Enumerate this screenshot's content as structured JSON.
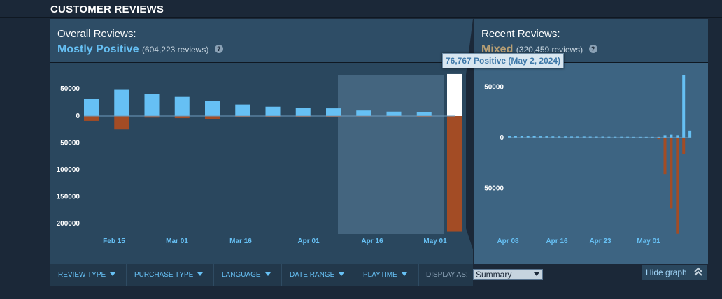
{
  "section_title": "CUSTOMER REVIEWS",
  "overall": {
    "label": "Overall Reviews:",
    "rating": "Mostly Positive",
    "count": "(604,223 reviews)",
    "rating_color": "#66c0f4"
  },
  "recent": {
    "label": "Recent Reviews:",
    "rating": "Mixed",
    "count": "(320,459 reviews)",
    "rating_color": "#b9a074"
  },
  "tooltip": "76,767 Positive (May 2, 2024)",
  "help_icon": "?",
  "filters": [
    {
      "label": "REVIEW TYPE"
    },
    {
      "label": "PURCHASE TYPE"
    },
    {
      "label": "LANGUAGE"
    },
    {
      "label": "DATE RANGE"
    },
    {
      "label": "PLAYTIME"
    }
  ],
  "display_as": {
    "label": "DISPLAY AS:",
    "value": "Summary"
  },
  "hide_graph": "Hide graph",
  "chart_data": [
    {
      "type": "bar",
      "y_ticks": [
        {
          "value": 50000,
          "label": "50000"
        },
        {
          "value": 0,
          "label": "0"
        },
        {
          "value": -50000,
          "label": "50000"
        },
        {
          "value": -100000,
          "label": "100000"
        },
        {
          "value": -150000,
          "label": "150000"
        },
        {
          "value": -200000,
          "label": "200000"
        }
      ],
      "x_tick_labels": [
        "Feb 15",
        "Mar 01",
        "Mar 16",
        "Apr 01",
        "Apr 16",
        "May 01"
      ],
      "series": [
        {
          "values": [
            32000,
            48000,
            40000,
            35000,
            27000,
            21000,
            17000,
            15000,
            14000,
            10000,
            8000,
            7000,
            77000
          ]
        },
        {
          "values": [
            -9000,
            -25000,
            -3000,
            -4000,
            -6000,
            -2000,
            -2000,
            -1500,
            -1500,
            -1000,
            -1000,
            -2000,
            -215000
          ]
        }
      ],
      "highlighted_index": 12,
      "selection_range": [
        "Apr 08",
        "May 02"
      ],
      "colors": {
        "positive": "#66c0f4",
        "negative": "#a34c25",
        "highlight": "#ffffff"
      }
    },
    {
      "type": "bar",
      "y_ticks": [
        {
          "value": 50000,
          "label": "50000"
        },
        {
          "value": 0,
          "label": "0"
        },
        {
          "value": -50000,
          "label": "50000"
        }
      ],
      "x_tick_labels": [
        "Apr 08",
        "Apr 16",
        "Apr 23",
        "May 01"
      ],
      "series": [
        {
          "values": [
            1800,
            1500,
            1500,
            1400,
            1400,
            1300,
            1300,
            1200,
            1200,
            1200,
            1100,
            1100,
            1100,
            1000,
            1000,
            1000,
            900,
            900,
            900,
            900,
            800,
            800,
            800,
            800,
            800,
            2500,
            3000,
            2500,
            62000,
            7000
          ]
        },
        {
          "values": [
            -200,
            -200,
            -200,
            -200,
            -200,
            -200,
            -200,
            -200,
            -200,
            -200,
            -200,
            -200,
            -200,
            -200,
            -200,
            -200,
            -200,
            -200,
            -200,
            -300,
            -300,
            -300,
            -500,
            -500,
            -1500,
            -36000,
            -70000,
            -95000,
            -16000,
            -400
          ]
        }
      ],
      "colors": {
        "positive": "#66c0f4",
        "negative": "#a34c25"
      }
    }
  ]
}
